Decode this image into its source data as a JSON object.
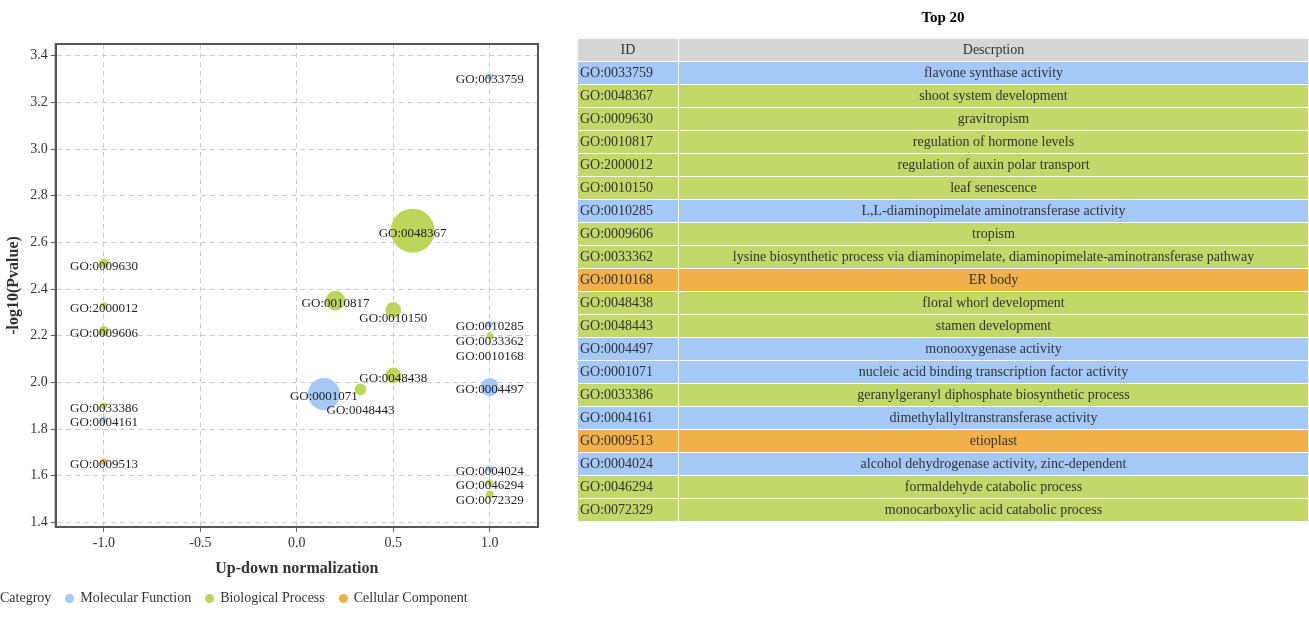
{
  "chart_data": [
    {
      "type": "bubble",
      "xlabel": "Up-down normalization",
      "ylabel": "-log10(Pvalue)",
      "legend_title": "Categroy",
      "legend": "bottom",
      "grid": true,
      "marker": "circle",
      "xlim": [
        -1.25,
        1.25
      ],
      "xticks": [
        {
          "value": -1,
          "label": "-1.0"
        },
        {
          "value": -0.5,
          "label": "-0.5"
        },
        {
          "value": 0,
          "label": "0.0"
        },
        {
          "value": 0.5,
          "label": "0.5"
        },
        {
          "value": 1,
          "label": "1.0"
        }
      ],
      "ylim": [
        1.38,
        3.45
      ],
      "yticks": [
        1.4,
        1.6,
        1.8,
        {
          "value": 2,
          "label": "2.0"
        },
        2.2,
        2.4,
        2.6,
        2.8,
        {
          "value": 3,
          "label": "3.0"
        },
        3.2,
        3.4
      ],
      "series": [
        {
          "name": "Molecular Function",
          "color": "#a4c8f8",
          "x": [
            1,
            1,
            1,
            0.14,
            -1,
            1
          ],
          "values": [
            3.31,
            2.25,
            1.98,
            1.95,
            1.84,
            1.63
          ],
          "sizes": [
            0.02,
            0.02,
            0.17,
            0.53,
            0.02,
            0.02
          ]
        },
        {
          "name": "Biological Process",
          "color": "#bcd65a",
          "x": [
            0.6,
            -1,
            0.2,
            -1,
            0.5,
            -1,
            1,
            0.5,
            0.33,
            -1,
            1,
            1
          ],
          "values": [
            2.65,
            2.51,
            2.35,
            2.33,
            2.31,
            2.22,
            2.2,
            2.03,
            1.97,
            1.9,
            1.57,
            1.52
          ],
          "sizes": [
            1,
            0.05,
            0.2,
            0.02,
            0.13,
            0.05,
            0.02,
            0.13,
            0.07,
            0.02,
            0.02,
            0.03
          ]
        },
        {
          "name": "Cellular Component",
          "color": "#f2b04a",
          "x": [
            1,
            -1
          ],
          "values": [
            2.2,
            1.66
          ],
          "sizes": [
            0.02,
            0.02
          ]
        }
      ],
      "annotations": [
        {
          "text": "GO:0033759",
          "x": 1,
          "y": 3.31
        },
        {
          "text": "GO:0010285",
          "x": 1,
          "y": 2.25
        },
        {
          "text": "GO:0004497",
          "x": 1,
          "y": 1.98
        },
        {
          "text": "GO:0001071",
          "x": 0.14,
          "y": 1.95
        },
        {
          "text": "GO:0004161",
          "x": -1,
          "y": 1.84
        },
        {
          "text": "GO:0004024",
          "x": 1,
          "y": 1.63
        },
        {
          "text": "GO:0048367",
          "x": 0.6,
          "y": 2.65
        },
        {
          "text": "GO:0009630",
          "x": -1,
          "y": 2.51
        },
        {
          "text": "GO:0010817",
          "x": 0.2,
          "y": 2.35
        },
        {
          "text": "GO:2000012",
          "x": -1,
          "y": 2.33
        },
        {
          "text": "GO:0010150",
          "x": 0.5,
          "y": 2.31
        },
        {
          "text": "GO:0009606",
          "x": -1,
          "y": 2.22
        },
        {
          "text": "GO:0033362",
          "x": 1,
          "y": 2.2
        },
        {
          "text": "GO:0048438",
          "x": 0.5,
          "y": 2.03
        },
        {
          "text": "GO:0048443",
          "x": 0.33,
          "y": 1.97
        },
        {
          "text": "GO:0033386",
          "x": -1,
          "y": 1.9
        },
        {
          "text": "GO:0046294",
          "x": 1,
          "y": 1.57
        },
        {
          "text": "GO:0072329",
          "x": 1,
          "y": 1.52
        },
        {
          "text": "GO:0010168",
          "x": 1,
          "y": 2.2
        },
        {
          "text": "GO:0009513",
          "x": -1,
          "y": 1.66
        }
      ]
    },
    {
      "type": "other",
      "title": "Top 20",
      "cell_labels": [
        [
          "ID",
          "Descrption"
        ],
        [
          "GO:0033759",
          "flavone synthase activity"
        ],
        [
          "GO:0048367",
          "shoot system development"
        ],
        [
          "GO:0009630",
          "gravitropism"
        ],
        [
          "GO:0010817",
          "regulation of hormone levels"
        ],
        [
          "GO:2000012",
          "regulation of auxin polar transport"
        ],
        [
          "GO:0010150",
          "leaf senescence"
        ],
        [
          "GO:0010285",
          "L,L-diaminopimelate aminotransferase activity"
        ],
        [
          "GO:0009606",
          "tropism"
        ],
        [
          "GO:0033362",
          "lysine biosynthetic process via diaminopimelate, diaminopimelate-aminotransferase pathway"
        ],
        [
          "GO:0010168",
          "ER body"
        ],
        [
          "GO:0048438",
          "floral whorl development"
        ],
        [
          "GO:0048443",
          "stamen development"
        ],
        [
          "GO:0004497",
          "monooxygenase activity"
        ],
        [
          "GO:0001071",
          "nucleic acid binding transcription factor activity"
        ],
        [
          "GO:0033386",
          "geranylgeranyl diphosphate biosynthetic process"
        ],
        [
          "GO:0004161",
          "dimethylallyltranstransferase activity"
        ],
        [
          "GO:0009513",
          "etioplast"
        ],
        [
          "GO:0004024",
          "alcohol dehydrogenase activity, zinc-dependent"
        ],
        [
          "GO:0046294",
          "formaldehyde catabolic process"
        ],
        [
          "GO:0072329",
          "monocarboxylic acid catabolic process"
        ]
      ],
      "colors": [
        "#d6d6d6",
        "#a4c8f8",
        "#c2d869",
        "#c2d869",
        "#c2d869",
        "#c2d869",
        "#c2d869",
        "#a4c8f8",
        "#c2d869",
        "#c2d869",
        "#f2b04a",
        "#c2d869",
        "#c2d869",
        "#a4c8f8",
        "#a4c8f8",
        "#c2d869",
        "#a4c8f8",
        "#f2b04a",
        "#a4c8f8",
        "#c2d869",
        "#c2d869"
      ]
    }
  ]
}
